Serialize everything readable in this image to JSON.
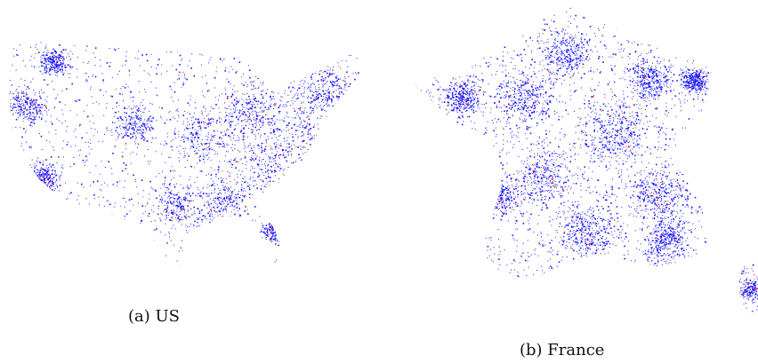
{
  "figure": {
    "panels": [
      {
        "id": "us",
        "caption": "(a) US"
      },
      {
        "id": "france",
        "caption": "(b) France"
      }
    ],
    "colors": {
      "background": "#ffffff",
      "primary_points": "#1a1aff",
      "highlight_points": "#e8102a"
    }
  }
}
